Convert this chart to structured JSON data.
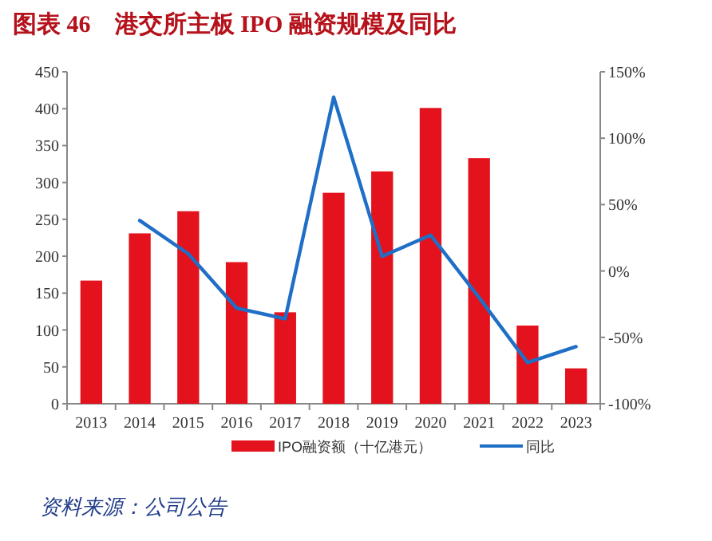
{
  "chart_data": {
    "type": "bar",
    "title": "图表 46　港交所主板 IPO 融资规模及同比",
    "categories": [
      "2013",
      "2014",
      "2015",
      "2016",
      "2017",
      "2018",
      "2019",
      "2020",
      "2021",
      "2022",
      "2023"
    ],
    "series": [
      {
        "name": "IPO融资额（十亿港元）",
        "color": "#e3121c",
        "values": [
          167,
          231,
          261,
          192,
          124,
          286,
          315,
          401,
          333,
          106,
          48
        ]
      },
      {
        "name": "同比",
        "type": "line",
        "axis": "y2",
        "color": "#1f6fc6",
        "values": [
          null,
          38,
          13,
          -28,
          -36,
          131,
          11,
          27,
          -20,
          -69,
          -57
        ]
      }
    ],
    "ylim": [
      0,
      450
    ],
    "yticks": [
      0,
      50,
      100,
      150,
      200,
      250,
      300,
      350,
      400,
      450
    ],
    "y2lim": [
      -100,
      150
    ],
    "y2ticks": [
      {
        "value": -100,
        "label": "-100%"
      },
      {
        "value": -50,
        "label": "-50%"
      },
      {
        "value": 0,
        "label": "0%"
      },
      {
        "value": 50,
        "label": "50%"
      },
      {
        "value": 100,
        "label": "100%"
      },
      {
        "value": 150,
        "label": "150%"
      }
    ],
    "legend": "bottom",
    "grid": false,
    "marker": "none",
    "line_style": "solid",
    "annotations": [
      "资料来源：公司公告"
    ]
  }
}
